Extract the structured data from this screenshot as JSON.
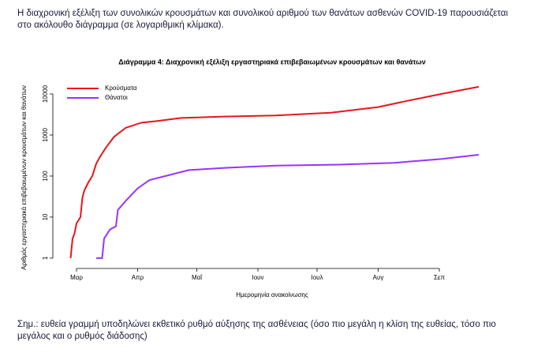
{
  "intro": "Η διαχρονική εξέλιξη των συνολικών κρουσμάτων και συνολικού αριθμού των θανάτων ασθενών COVID-19 παρουσιάζεται στο ακόλουθο διάγραμμα (σε λογαριθμική κλίμακα).",
  "note": "Σημ.: ευθεία γραμμή υποδηλώνει εκθετικό ρυθμό αύξησης της ασθένειας (όσο πιο μεγάλη η κλίση της ευθείας, τόσο πιο μεγάλος και ο ρυθμός διάδοσης)",
  "chart_data": {
    "type": "line",
    "title": "Διάγραμμα 4: Διαχρονική εξέλιξη εργαστηριακά επιβεβαιωμένων κρουσμάτων και θανάτων",
    "xlabel": "Ημερομηνία ανακοίνωσης",
    "ylabel": "Αριθμός εργαστηριακά επιβεβαιωμένων κρουσμάτων και θανάτων",
    "log_y": true,
    "legend": "top-left",
    "xlim": [
      49,
      270
    ],
    "xticks": [
      {
        "value": 61,
        "label": "Μαρ"
      },
      {
        "value": 92,
        "label": "Απρ"
      },
      {
        "value": 122,
        "label": "Μαΐ"
      },
      {
        "value": 153,
        "label": "Ιουν"
      },
      {
        "value": 183,
        "label": "Ιουλ"
      },
      {
        "value": 214,
        "label": "Αυγ"
      },
      {
        "value": 245,
        "label": "Σεπ"
      }
    ],
    "ylim": [
      0.56,
      29000
    ],
    "yticks": [
      1,
      10,
      100,
      1000,
      10000
    ],
    "series": [
      {
        "name": "Κρούσματα",
        "color": "#e8151b",
        "x": [
          58,
          59,
          60,
          61,
          63,
          64,
          65,
          67,
          69,
          71,
          73,
          76,
          80,
          86,
          94,
          102,
          114,
          134,
          162,
          190,
          214,
          230,
          246,
          265
        ],
        "values": [
          1,
          3,
          4,
          7,
          10,
          30,
          45,
          70,
          100,
          200,
          300,
          500,
          900,
          1500,
          2000,
          2200,
          2600,
          2800,
          3000,
          3500,
          4800,
          7000,
          10000,
          15000
        ]
      },
      {
        "name": "Θάνατοι",
        "color": "#9933ff",
        "x": [
          71,
          74,
          75,
          78,
          81,
          82,
          86,
          92,
          98,
          106,
          118,
          138,
          162,
          194,
          222,
          246,
          265
        ],
        "values": [
          1,
          1,
          3,
          5,
          6,
          15,
          25,
          50,
          80,
          100,
          140,
          160,
          180,
          190,
          210,
          260,
          330
        ]
      }
    ]
  }
}
